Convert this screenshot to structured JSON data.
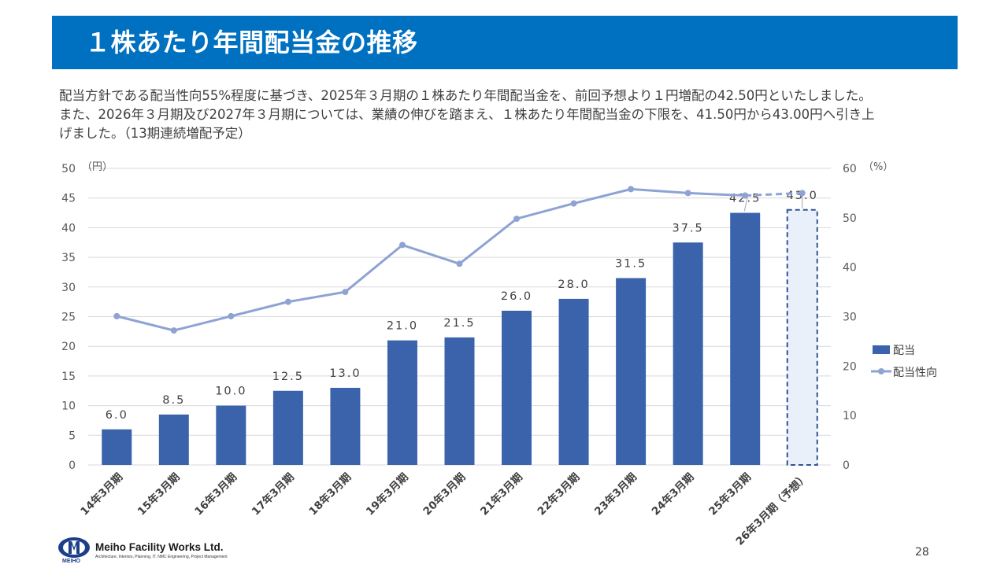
{
  "title": "１株あたり年間配当金の推移",
  "description": [
    "配当方針である配当性向55%程度に基づき、2025年３月期の１株あたり年間配当金を、前回予想より１円増配の42.50円といたしました。",
    "また、2026年３月期及び2027年３月期については、業績の伸びを踏まえ、１株あたり年間配当金の下限を、41.50円から43.00円へ引き上",
    "げました。（13期連続増配予定）"
  ],
  "chart_data": {
    "type": "bar",
    "categories": [
      "14年3月期",
      "15年3月期",
      "16年3月期",
      "17年3月期",
      "18年3月期",
      "19年3月期",
      "20年3月期",
      "21年3月期",
      "22年3月期",
      "23年3月期",
      "24年3月期",
      "25年3月期",
      "26年3月期（予想）"
    ],
    "y_left_unit": "（円）",
    "y_right_unit": "（%）",
    "ylim_left": [
      0,
      50
    ],
    "ylim_right": [
      0,
      60
    ],
    "yticks_left": [
      0,
      5,
      10,
      15,
      20,
      25,
      30,
      35,
      40,
      45,
      50
    ],
    "yticks_right": [
      0,
      10,
      20,
      30,
      40,
      50,
      60
    ],
    "grid": true,
    "legend_position": "right",
    "series": [
      {
        "name": "配当",
        "type": "bar",
        "axis": "left",
        "color": "#3a63ab",
        "values": [
          6.0,
          8.5,
          10.0,
          12.5,
          13.0,
          21.0,
          21.5,
          26.0,
          28.0,
          31.5,
          37.5,
          42.5,
          43.0
        ],
        "labels": [
          "6.0",
          "8.5",
          "10.0",
          "12.5",
          "13.0",
          "21.0",
          "21.5",
          "26.0",
          "28.0",
          "31.5",
          "37.5",
          "42.5",
          "43.0"
        ],
        "forecast_index": 12
      },
      {
        "name": "配当性向",
        "type": "line",
        "axis": "right",
        "color": "#8ea3d4",
        "values": [
          30.1,
          27.2,
          30.1,
          33.0,
          35.0,
          44.5,
          40.7,
          49.8,
          52.9,
          55.8,
          55.0,
          54.5,
          55.0
        ],
        "forecast_index": 12
      }
    ]
  },
  "footer": {
    "company": "Meiho Facility Works Ltd.",
    "tagline": "Architecture, Interiors, Planning, IT, NMC Engineering, Project Management",
    "logo_abbr": "MEIHO",
    "page": "28"
  }
}
